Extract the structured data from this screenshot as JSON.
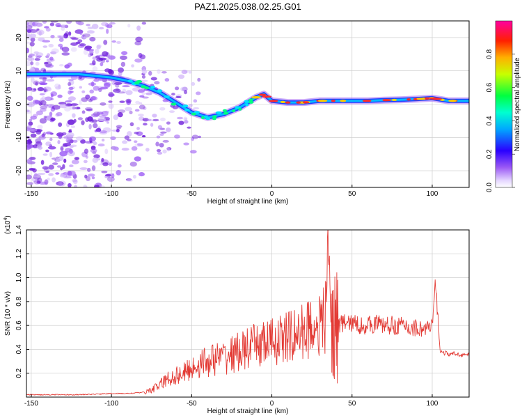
{
  "title": "PAZ1.2025.038.02.25.G01",
  "colors": {
    "signal": "#e33b35",
    "grid": "#c8c8c8",
    "scatter": "#a06ee8",
    "track": "#2040ff",
    "track_core": "#ff2b2b"
  },
  "chart_data": [
    {
      "type": "heatmap",
      "title": "PAZ1.2025.038.02.25.G01",
      "xlabel": "Height of straight line (km)",
      "ylabel": "Frequency (Hz)",
      "xlim": [
        -153,
        123
      ],
      "ylim": [
        -25,
        25
      ],
      "xticks": [
        -150,
        -100,
        -50,
        0,
        50,
        100
      ],
      "xtick_labels": [
        "-150",
        "-100",
        "-50",
        "0",
        "50",
        "100"
      ],
      "yticks": [
        20,
        10,
        0,
        -10,
        -20
      ],
      "ytick_labels": [
        "20",
        "10",
        "0",
        "-10",
        "-20"
      ],
      "grid": true,
      "ridge": {
        "x": [
          -153,
          -120,
          -100,
          -90,
          -80,
          -70,
          -60,
          -50,
          -40,
          -30,
          -20,
          -10,
          -5,
          0,
          10,
          20,
          30,
          40,
          50,
          60,
          70,
          80,
          90,
          100,
          110,
          123
        ],
        "y": [
          9,
          9,
          8,
          7,
          5.5,
          3.5,
          0.5,
          -2.5,
          -4,
          -3,
          -1,
          2,
          3,
          1,
          0.5,
          0.5,
          1,
          1,
          1,
          1,
          1.2,
          1.3,
          1.5,
          1.8,
          1,
          1
        ]
      },
      "colorbar": {
        "label": "Normalized spectral amplitude",
        "ticks": [
          0.0,
          0.2,
          0.4,
          0.6,
          0.8
        ],
        "tick_labels": [
          "0.0",
          "0.2",
          "0.4",
          "0.6",
          "0.8"
        ],
        "range": [
          0,
          1
        ],
        "colormap": "rainbow (violet-blue-cyan-green-yellow-red-magenta)"
      }
    },
    {
      "type": "line",
      "xlabel": "Height of straight line (km)",
      "ylabel": "SNR (10 * v/v)",
      "yscale_note": "(x10",
      "yscale_exponent": "4",
      "xlim": [
        -153,
        123
      ],
      "ylim": [
        0,
        1.4
      ],
      "xticks": [
        -150,
        -100,
        -50,
        0,
        50,
        100
      ],
      "xtick_labels": [
        "-150",
        "-100",
        "-50",
        "0",
        "50",
        "100"
      ],
      "yticks": [
        0.2,
        0.4,
        0.6,
        0.8,
        1.0,
        1.2,
        1.4
      ],
      "ytick_labels": [
        "0.2",
        "0.4",
        "0.6",
        "0.8",
        "1.0",
        "1.2",
        "1.4"
      ],
      "grid": true,
      "series": [
        {
          "x": [
            -153,
            -140,
            -120,
            -100,
            -90,
            -80,
            -75,
            -70,
            -65,
            -60,
            -55,
            -50,
            -45,
            -40,
            -35,
            -30,
            -25,
            -20,
            -15,
            -10,
            -5,
            0,
            5,
            10,
            15,
            20,
            25,
            30,
            33,
            35,
            37,
            40,
            45,
            50,
            55,
            60,
            65,
            70,
            75,
            80,
            85,
            90,
            95,
            100,
            102,
            105,
            110,
            115,
            123
          ],
          "values": [
            0.02,
            0.02,
            0.02,
            0.03,
            0.03,
            0.04,
            0.06,
            0.1,
            0.15,
            0.18,
            0.2,
            0.24,
            0.28,
            0.3,
            0.32,
            0.33,
            0.36,
            0.38,
            0.4,
            0.43,
            0.45,
            0.46,
            0.48,
            0.5,
            0.52,
            0.55,
            0.6,
            0.6,
            0.65,
            1.4,
            0.6,
            0.6,
            0.62,
            0.62,
            0.6,
            0.6,
            0.62,
            0.6,
            0.6,
            0.6,
            0.58,
            0.58,
            0.57,
            0.58,
            0.95,
            0.38,
            0.36,
            0.36,
            0.35
          ]
        }
      ]
    }
  ]
}
